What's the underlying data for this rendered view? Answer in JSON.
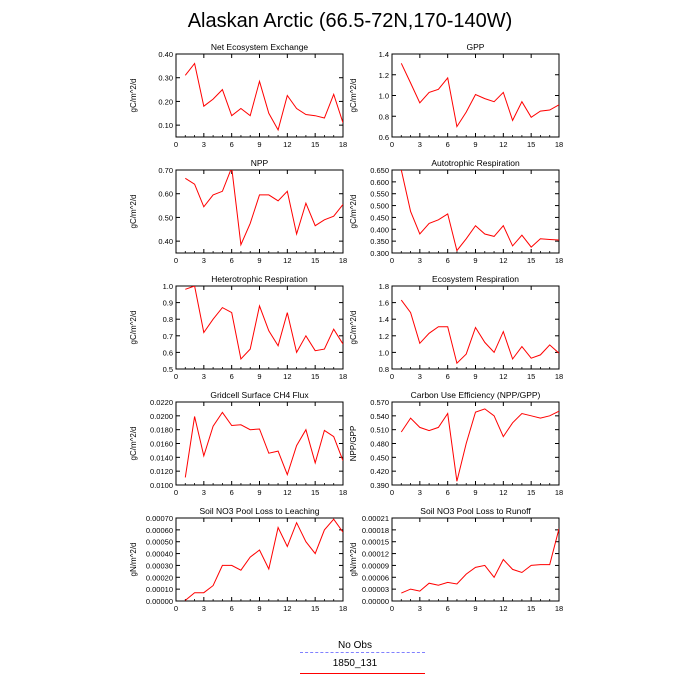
{
  "title": "Alaskan Arctic (66.5-72N,170-140W)",
  "legend": {
    "items": [
      {
        "label": "No Obs",
        "color": "#8080ff",
        "dashed": true
      },
      {
        "label": "1850_131",
        "color": "#ff0000",
        "dashed": false
      }
    ]
  },
  "chart_data": [
    {
      "type": "line",
      "title": "Net Ecosystem Exchange",
      "ylabel": "gC/m^2/d",
      "xlim": [
        0,
        18
      ],
      "xticks": [
        0,
        3,
        6,
        9,
        12,
        15,
        18
      ],
      "ylim": [
        0.05,
        0.4
      ],
      "yticks": [
        "0.10",
        "0.20",
        "0.30",
        "0.40"
      ],
      "series": [
        {
          "color": "#ff0000",
          "x": [
            1,
            2,
            3,
            4,
            5,
            6,
            7,
            8,
            9,
            10,
            11,
            12,
            13,
            14,
            15,
            16,
            17,
            18
          ],
          "y": [
            0.31,
            0.36,
            0.18,
            0.21,
            0.25,
            0.14,
            0.17,
            0.14,
            0.285,
            0.15,
            0.08,
            0.225,
            0.17,
            0.145,
            0.14,
            0.13,
            0.23,
            0.11
          ]
        }
      ]
    },
    {
      "type": "line",
      "title": "GPP",
      "ylabel": "gC/m^2/d",
      "xlim": [
        0,
        18
      ],
      "xticks": [
        0,
        3,
        6,
        9,
        12,
        15,
        18
      ],
      "ylim": [
        0.6,
        1.4
      ],
      "yticks": [
        "0.6",
        "0.8",
        "1.0",
        "1.2",
        "1.4"
      ],
      "series": [
        {
          "color": "#ff0000",
          "x": [
            1,
            2,
            3,
            4,
            5,
            6,
            7,
            8,
            9,
            10,
            11,
            12,
            13,
            14,
            15,
            16,
            17,
            18
          ],
          "y": [
            1.31,
            1.12,
            0.93,
            1.03,
            1.06,
            1.17,
            0.7,
            0.84,
            1.01,
            0.97,
            0.94,
            1.03,
            0.76,
            0.94,
            0.79,
            0.85,
            0.86,
            0.91
          ]
        }
      ]
    },
    {
      "type": "line",
      "title": "NPP",
      "ylabel": "gC/m^2/d",
      "xlim": [
        0,
        18
      ],
      "xticks": [
        0,
        3,
        6,
        9,
        12,
        15,
        18
      ],
      "ylim": [
        0.35,
        0.7
      ],
      "yticks": [
        "0.40",
        "0.50",
        "0.60",
        "0.70"
      ],
      "series": [
        {
          "color": "#ff0000",
          "x": [
            1,
            2,
            3,
            4,
            5,
            6,
            7,
            8,
            9,
            10,
            11,
            12,
            13,
            14,
            15,
            16,
            17,
            18
          ],
          "y": [
            0.665,
            0.64,
            0.545,
            0.595,
            0.61,
            0.71,
            0.385,
            0.475,
            0.595,
            0.595,
            0.57,
            0.61,
            0.43,
            0.56,
            0.465,
            0.49,
            0.505,
            0.555
          ]
        }
      ]
    },
    {
      "type": "line",
      "title": "Autotrophic Respiration",
      "ylabel": "gC/m^2/d",
      "xlim": [
        0,
        18
      ],
      "xticks": [
        0,
        3,
        6,
        9,
        12,
        15,
        18
      ],
      "ylim": [
        0.3,
        0.65
      ],
      "yticks": [
        "0.300",
        "0.350",
        "0.400",
        "0.450",
        "0.500",
        "0.550",
        "0.600",
        "0.650"
      ],
      "series": [
        {
          "color": "#ff0000",
          "x": [
            1,
            2,
            3,
            4,
            5,
            6,
            7,
            8,
            9,
            10,
            11,
            12,
            13,
            14,
            15,
            16,
            17,
            18
          ],
          "y": [
            0.65,
            0.475,
            0.38,
            0.425,
            0.44,
            0.465,
            0.31,
            0.36,
            0.415,
            0.38,
            0.37,
            0.415,
            0.33,
            0.375,
            0.325,
            0.36,
            0.357,
            0.355
          ]
        }
      ]
    },
    {
      "type": "line",
      "title": "Heterotrophic Respiration",
      "ylabel": "gC/m^2/d",
      "xlim": [
        0,
        18
      ],
      "xticks": [
        0,
        3,
        6,
        9,
        12,
        15,
        18
      ],
      "ylim": [
        0.5,
        1.0
      ],
      "yticks": [
        "0.5",
        "0.6",
        "0.7",
        "0.8",
        "0.9",
        "1.0"
      ],
      "series": [
        {
          "color": "#ff0000",
          "x": [
            1,
            2,
            3,
            4,
            5,
            6,
            7,
            8,
            9,
            10,
            11,
            12,
            13,
            14,
            15,
            16,
            17,
            18
          ],
          "y": [
            0.98,
            1.0,
            0.72,
            0.8,
            0.87,
            0.84,
            0.56,
            0.62,
            0.88,
            0.73,
            0.64,
            0.84,
            0.6,
            0.7,
            0.61,
            0.62,
            0.74,
            0.65
          ]
        }
      ]
    },
    {
      "type": "line",
      "title": "Ecosystem Respiration",
      "ylabel": "gC/m^2/d",
      "xlim": [
        0,
        18
      ],
      "xticks": [
        0,
        3,
        6,
        9,
        12,
        15,
        18
      ],
      "ylim": [
        0.8,
        1.8
      ],
      "yticks": [
        "0.8",
        "1.0",
        "1.2",
        "1.4",
        "1.6",
        "1.8"
      ],
      "series": [
        {
          "color": "#ff0000",
          "x": [
            1,
            2,
            3,
            4,
            5,
            6,
            7,
            8,
            9,
            10,
            11,
            12,
            13,
            14,
            15,
            16,
            17,
            18
          ],
          "y": [
            1.63,
            1.48,
            1.11,
            1.23,
            1.31,
            1.31,
            0.87,
            0.98,
            1.3,
            1.12,
            1.0,
            1.25,
            0.92,
            1.07,
            0.93,
            0.97,
            1.09,
            0.99
          ]
        }
      ]
    },
    {
      "type": "line",
      "title": "Gridcell Surface CH4 Flux",
      "ylabel": "gC/m^2/d",
      "xlim": [
        0,
        18
      ],
      "xticks": [
        0,
        3,
        6,
        9,
        12,
        15,
        18
      ],
      "ylim": [
        0.01,
        0.022
      ],
      "yticks": [
        "0.0100",
        "0.0120",
        "0.0140",
        "0.0160",
        "0.0180",
        "0.0200",
        "0.0220"
      ],
      "series": [
        {
          "color": "#ff0000",
          "x": [
            1,
            2,
            3,
            4,
            5,
            6,
            7,
            8,
            9,
            10,
            11,
            12,
            13,
            14,
            15,
            16,
            17,
            18
          ],
          "y": [
            0.0111,
            0.0199,
            0.0142,
            0.0185,
            0.0205,
            0.0186,
            0.0187,
            0.018,
            0.0181,
            0.0146,
            0.0149,
            0.0115,
            0.0157,
            0.018,
            0.0132,
            0.0179,
            0.017,
            0.0135
          ]
        }
      ]
    },
    {
      "type": "line",
      "title": "Carbon Use Efficiency (NPP/GPP)",
      "ylabel": "NPP/GPP",
      "xlim": [
        0,
        18
      ],
      "xticks": [
        0,
        3,
        6,
        9,
        12,
        15,
        18
      ],
      "ylim": [
        0.39,
        0.57
      ],
      "yticks": [
        "0.390",
        "0.420",
        "0.450",
        "0.480",
        "0.510",
        "0.540",
        "0.570"
      ],
      "series": [
        {
          "color": "#ff0000",
          "x": [
            1,
            2,
            3,
            4,
            5,
            6,
            7,
            8,
            9,
            10,
            11,
            12,
            13,
            14,
            15,
            16,
            17,
            18
          ],
          "y": [
            0.505,
            0.535,
            0.515,
            0.508,
            0.515,
            0.545,
            0.398,
            0.48,
            0.548,
            0.555,
            0.54,
            0.495,
            0.525,
            0.545,
            0.54,
            0.535,
            0.54,
            0.55
          ]
        }
      ]
    },
    {
      "type": "line",
      "title": "Soil NO3 Pool Loss to Leaching",
      "ylabel": "gN/m^2/d",
      "xlim": [
        0,
        18
      ],
      "xticks": [
        0,
        3,
        6,
        9,
        12,
        15,
        18
      ],
      "ylim": [
        0,
        0.0007
      ],
      "yticks": [
        "0.00000",
        "0.00010",
        "0.00020",
        "0.00030",
        "0.00040",
        "0.00050",
        "0.00060",
        "0.00070"
      ],
      "series": [
        {
          "color": "#ff0000",
          "x": [
            1,
            2,
            3,
            4,
            5,
            6,
            7,
            8,
            9,
            10,
            11,
            12,
            13,
            14,
            15,
            16,
            17,
            18
          ],
          "y": [
            5e-06,
            7e-05,
            7e-05,
            0.00013,
            0.0003,
            0.0003,
            0.00026,
            0.00037,
            0.00043,
            0.00027,
            0.00062,
            0.00046,
            0.00066,
            0.0005,
            0.0004,
            0.0006,
            0.00069,
            0.00058
          ]
        }
      ]
    },
    {
      "type": "line",
      "title": "Soil NO3 Pool Loss to Runoff",
      "ylabel": "gN/m^2/d",
      "xlim": [
        0,
        18
      ],
      "xticks": [
        0,
        3,
        6,
        9,
        12,
        15,
        18
      ],
      "ylim": [
        0,
        0.00021
      ],
      "yticks": [
        "0.00000",
        "0.00003",
        "0.00006",
        "0.00009",
        "0.00012",
        "0.00015",
        "0.00018",
        "0.00021"
      ],
      "series": [
        {
          "color": "#ff0000",
          "x": [
            1,
            2,
            3,
            4,
            5,
            6,
            7,
            8,
            9,
            10,
            11,
            12,
            13,
            14,
            15,
            16,
            17,
            18
          ],
          "y": [
            2e-05,
            3e-05,
            2.5e-05,
            4.5e-05,
            4e-05,
            4.7e-05,
            4.3e-05,
            6.8e-05,
            8.5e-05,
            9e-05,
            6e-05,
            0.000105,
            8e-05,
            7.2e-05,
            9e-05,
            9.2e-05,
            9.2e-05,
            0.000183
          ]
        }
      ]
    }
  ]
}
